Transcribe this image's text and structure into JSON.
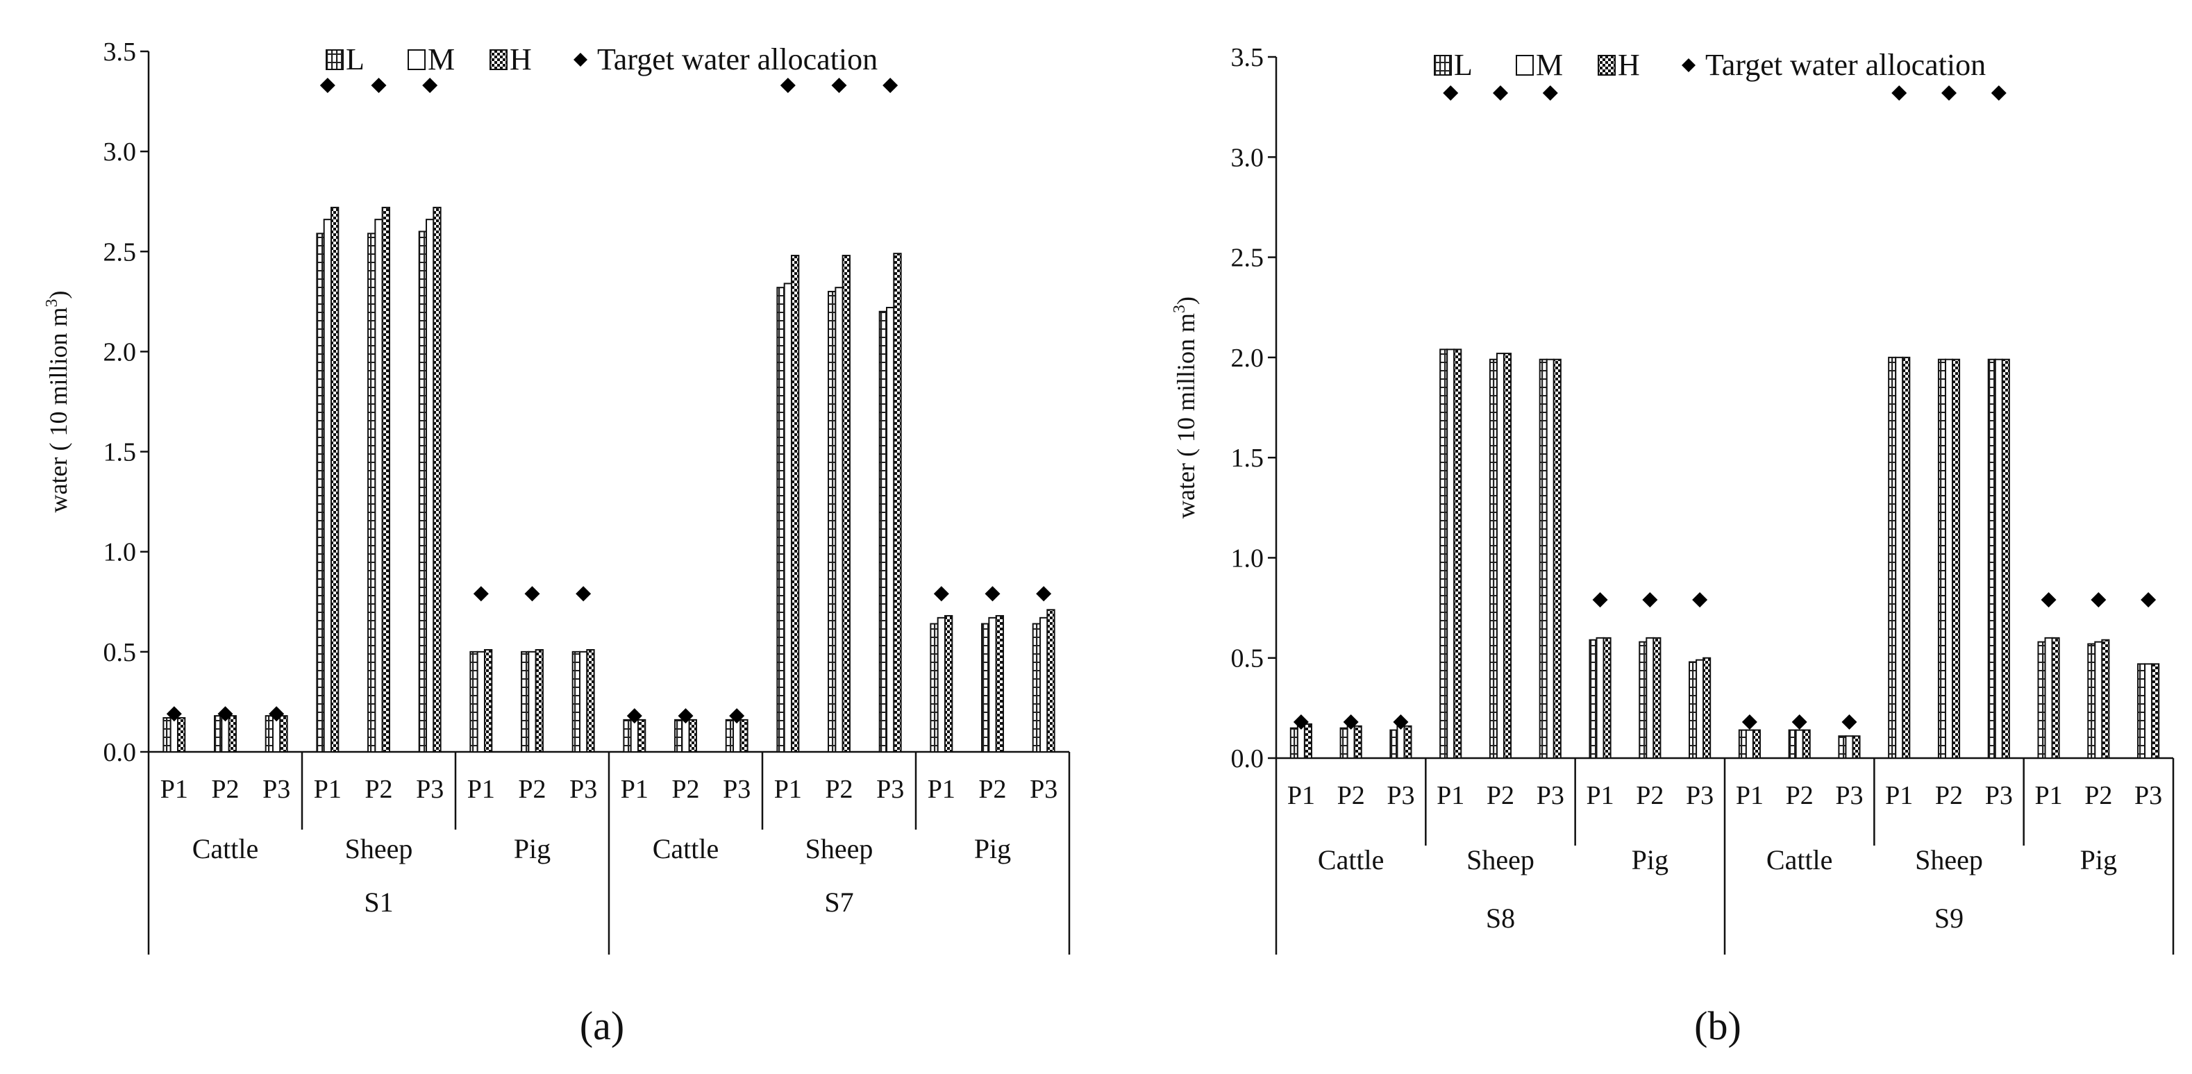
{
  "chart_data": [
    {
      "type": "bar",
      "panel_label": "(a)",
      "ylabel": "water ( 10 million m",
      "ylabel_sup": "3",
      "ylabel_close": ")",
      "ylim": [
        0,
        3.5
      ],
      "yticks": [
        "0.0",
        "0.5",
        "1.0",
        "1.5",
        "2.0",
        "2.5",
        "3.0",
        "3.5"
      ],
      "grid": false,
      "legend_position": "top",
      "groups": [
        {
          "name": "S1",
          "animals": [
            {
              "name": "Cattle",
              "periods": [
                {
                  "label": "P1",
                  "L": 0.17,
                  "M": 0.17,
                  "H": 0.17,
                  "target": 0.19
                },
                {
                  "label": "P2",
                  "L": 0.18,
                  "M": 0.18,
                  "H": 0.18,
                  "target": 0.19
                },
                {
                  "label": "P3",
                  "L": 0.18,
                  "M": 0.18,
                  "H": 0.18,
                  "target": 0.19
                }
              ]
            },
            {
              "name": "Sheep",
              "periods": [
                {
                  "label": "P1",
                  "L": 2.59,
                  "M": 2.66,
                  "H": 2.72,
                  "target": 3.33
                },
                {
                  "label": "P2",
                  "L": 2.59,
                  "M": 2.66,
                  "H": 2.72,
                  "target": 3.33
                },
                {
                  "label": "P3",
                  "L": 2.6,
                  "M": 2.66,
                  "H": 2.72,
                  "target": 3.33
                }
              ]
            },
            {
              "name": "Pig",
              "periods": [
                {
                  "label": "P1",
                  "L": 0.5,
                  "M": 0.5,
                  "H": 0.51,
                  "target": 0.79
                },
                {
                  "label": "P2",
                  "L": 0.5,
                  "M": 0.5,
                  "H": 0.51,
                  "target": 0.79
                },
                {
                  "label": "P3",
                  "L": 0.5,
                  "M": 0.5,
                  "H": 0.51,
                  "target": 0.79
                }
              ]
            }
          ]
        },
        {
          "name": "S7",
          "animals": [
            {
              "name": "Cattle",
              "periods": [
                {
                  "label": "P1",
                  "L": 0.16,
                  "M": 0.16,
                  "H": 0.16,
                  "target": 0.18
                },
                {
                  "label": "P2",
                  "L": 0.16,
                  "M": 0.16,
                  "H": 0.16,
                  "target": 0.18
                },
                {
                  "label": "P3",
                  "L": 0.16,
                  "M": 0.16,
                  "H": 0.16,
                  "target": 0.18
                }
              ]
            },
            {
              "name": "Sheep",
              "periods": [
                {
                  "label": "P1",
                  "L": 2.32,
                  "M": 2.34,
                  "H": 2.48,
                  "target": 3.33
                },
                {
                  "label": "P2",
                  "L": 2.3,
                  "M": 2.32,
                  "H": 2.48,
                  "target": 3.33
                },
                {
                  "label": "P3",
                  "L": 2.2,
                  "M": 2.22,
                  "H": 2.49,
                  "target": 3.33
                }
              ]
            },
            {
              "name": "Pig",
              "periods": [
                {
                  "label": "P1",
                  "L": 0.64,
                  "M": 0.67,
                  "H": 0.68,
                  "target": 0.79
                },
                {
                  "label": "P2",
                  "L": 0.64,
                  "M": 0.67,
                  "H": 0.68,
                  "target": 0.79
                },
                {
                  "label": "P3",
                  "L": 0.64,
                  "M": 0.67,
                  "H": 0.71,
                  "target": 0.79
                }
              ]
            }
          ]
        }
      ],
      "legend": [
        {
          "key": "L",
          "label": "L"
        },
        {
          "key": "M",
          "label": "M"
        },
        {
          "key": "H",
          "label": "H"
        },
        {
          "key": "target",
          "label": "Target water allocation"
        }
      ]
    },
    {
      "type": "bar",
      "panel_label": "(b)",
      "ylabel": "water ( 10 million  m",
      "ylabel_sup": "3",
      "ylabel_close": ")",
      "ylim": [
        0,
        3.5
      ],
      "yticks": [
        "0.0",
        "0.5",
        "1.0",
        "1.5",
        "2.0",
        "2.5",
        "3.0",
        "3.5"
      ],
      "grid": false,
      "legend_position": "top",
      "groups": [
        {
          "name": "S8",
          "animals": [
            {
              "name": "Cattle",
              "periods": [
                {
                  "label": "P1",
                  "L": 0.15,
                  "M": 0.17,
                  "H": 0.17,
                  "target": 0.18
                },
                {
                  "label": "P2",
                  "L": 0.15,
                  "M": 0.16,
                  "H": 0.16,
                  "target": 0.18
                },
                {
                  "label": "P3",
                  "L": 0.14,
                  "M": 0.16,
                  "H": 0.16,
                  "target": 0.18
                }
              ]
            },
            {
              "name": "Sheep",
              "periods": [
                {
                  "label": "P1",
                  "L": 2.04,
                  "M": 2.04,
                  "H": 2.04,
                  "target": 3.32
                },
                {
                  "label": "P2",
                  "L": 1.99,
                  "M": 2.02,
                  "H": 2.02,
                  "target": 3.32
                },
                {
                  "label": "P3",
                  "L": 1.99,
                  "M": 1.99,
                  "H": 1.99,
                  "target": 3.32
                }
              ]
            },
            {
              "name": "Pig",
              "periods": [
                {
                  "label": "P1",
                  "L": 0.59,
                  "M": 0.6,
                  "H": 0.6,
                  "target": 0.79
                },
                {
                  "label": "P2",
                  "L": 0.58,
                  "M": 0.6,
                  "H": 0.6,
                  "target": 0.79
                },
                {
                  "label": "P3",
                  "L": 0.48,
                  "M": 0.49,
                  "H": 0.5,
                  "target": 0.79
                }
              ]
            }
          ]
        },
        {
          "name": "S9",
          "animals": [
            {
              "name": "Cattle",
              "periods": [
                {
                  "label": "P1",
                  "L": 0.14,
                  "M": 0.14,
                  "H": 0.14,
                  "target": 0.18
                },
                {
                  "label": "P2",
                  "L": 0.14,
                  "M": 0.14,
                  "H": 0.14,
                  "target": 0.18
                },
                {
                  "label": "P3",
                  "L": 0.11,
                  "M": 0.11,
                  "H": 0.11,
                  "target": 0.18
                }
              ]
            },
            {
              "name": "Sheep",
              "periods": [
                {
                  "label": "P1",
                  "L": 2.0,
                  "M": 2.0,
                  "H": 2.0,
                  "target": 3.32
                },
                {
                  "label": "P2",
                  "L": 1.99,
                  "M": 1.99,
                  "H": 1.99,
                  "target": 3.32
                },
                {
                  "label": "P3",
                  "L": 1.99,
                  "M": 1.99,
                  "H": 1.99,
                  "target": 3.32
                }
              ]
            },
            {
              "name": "Pig",
              "periods": [
                {
                  "label": "P1",
                  "L": 0.58,
                  "M": 0.6,
                  "H": 0.6,
                  "target": 0.79
                },
                {
                  "label": "P2",
                  "L": 0.57,
                  "M": 0.58,
                  "H": 0.59,
                  "target": 0.79
                },
                {
                  "label": "P3",
                  "L": 0.47,
                  "M": 0.47,
                  "H": 0.47,
                  "target": 0.79
                }
              ]
            }
          ]
        }
      ],
      "legend": [
        {
          "key": "L",
          "label": "L"
        },
        {
          "key": "M",
          "label": "M"
        },
        {
          "key": "H",
          "label": "H"
        },
        {
          "key": "target",
          "label": "Target water allocation"
        }
      ]
    }
  ]
}
